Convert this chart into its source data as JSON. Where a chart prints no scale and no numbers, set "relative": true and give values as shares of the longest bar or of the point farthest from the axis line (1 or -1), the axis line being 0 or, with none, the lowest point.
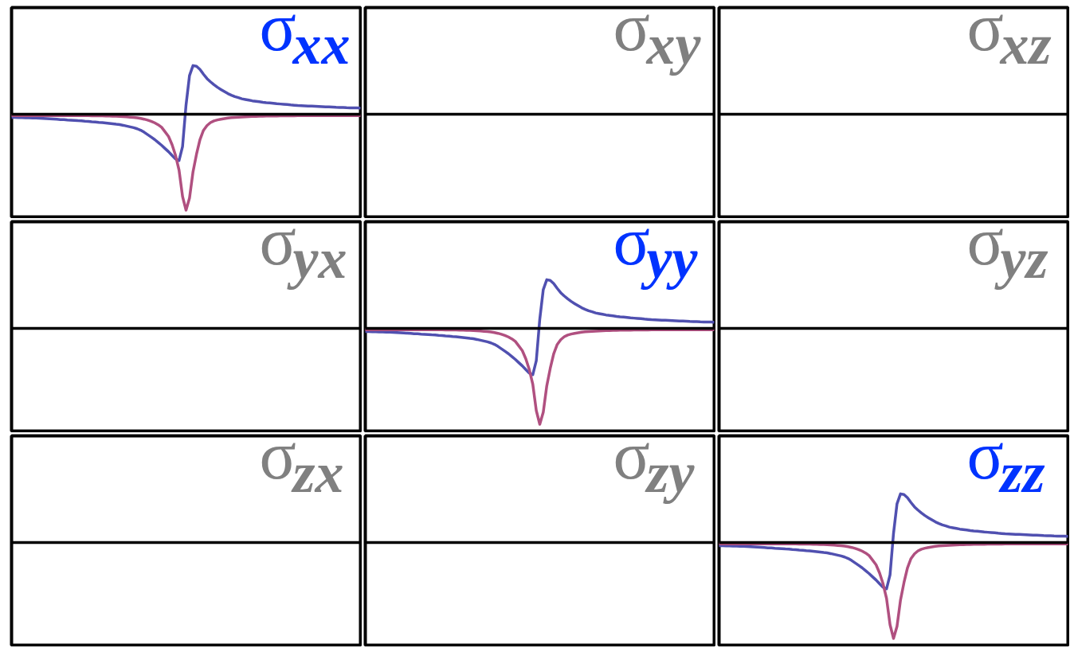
{
  "chart_data": [
    {
      "type": "line",
      "relative": true,
      "title": "σ$_{xx}$",
      "categories": [
        null,
        null,
        null,
        null,
        null,
        null,
        null,
        null,
        null,
        null,
        null,
        null,
        null,
        null,
        null,
        null,
        null,
        null,
        null,
        null,
        null,
        null,
        null,
        null,
        null,
        null,
        null,
        null,
        null,
        null,
        null,
        null,
        null,
        null,
        null,
        null,
        null,
        null,
        null,
        null,
        null,
        null,
        null,
        null,
        null,
        null,
        null,
        null,
        null,
        null,
        null,
        null,
        null,
        null,
        null,
        null,
        null,
        null,
        null,
        null,
        null,
        null,
        null,
        null,
        null,
        null,
        null,
        null,
        null,
        null,
        null,
        null,
        null,
        null,
        null,
        null,
        null,
        null,
        null,
        null,
        null,
        null,
        null,
        null,
        null,
        null,
        null,
        null,
        null,
        null,
        null,
        null,
        null,
        null,
        null,
        null,
        null,
        null,
        null,
        null,
        null
      ],
      "series": [
        {
          "color": "#5050b0",
          "values": [
            -0.033,
            -0.034,
            -0.035,
            -0.036,
            -0.038,
            -0.039,
            -0.04,
            -0.041,
            -0.043,
            -0.045,
            -0.047,
            -0.049,
            -0.051,
            -0.053,
            -0.056,
            -0.057,
            -0.06,
            -0.062,
            -0.065,
            -0.068,
            -0.07,
            -0.073,
            -0.075,
            -0.079,
            -0.081,
            -0.085,
            -0.088,
            -0.092,
            -0.096,
            -0.1,
            -0.105,
            -0.109,
            -0.116,
            -0.124,
            -0.132,
            -0.141,
            -0.152,
            -0.167,
            -0.188,
            -0.213,
            -0.238,
            -0.264,
            -0.294,
            -0.324,
            -0.358,
            -0.391,
            -0.43,
            -0.467,
            -0.483,
            -0.338,
            0.095,
            0.403,
            0.506,
            0.499,
            0.466,
            0.416,
            0.371,
            0.337,
            0.307,
            0.28,
            0.257,
            0.235,
            0.214,
            0.198,
            0.183,
            0.172,
            0.16,
            0.153,
            0.146,
            0.139,
            0.134,
            0.129,
            0.124,
            0.12,
            0.117,
            0.113,
            0.109,
            0.106,
            0.103,
            0.1,
            0.096,
            0.093,
            0.09,
            0.089,
            0.087,
            0.085,
            0.084,
            0.082,
            0.08,
            0.078,
            0.076,
            0.075,
            0.073,
            0.071,
            0.07,
            0.069,
            0.067,
            0.066,
            0.066,
            0.065,
            0.064
          ]
        },
        {
          "color": "#b05080",
          "values": [
            -0.015,
            -0.015,
            -0.015,
            -0.015,
            -0.015,
            -0.015,
            -0.015,
            -0.015,
            -0.015,
            -0.015,
            -0.015,
            -0.015,
            -0.015,
            -0.015,
            -0.015,
            -0.015,
            -0.015,
            -0.015,
            -0.015,
            -0.015,
            -0.015,
            -0.016,
            -0.016,
            -0.017,
            -0.017,
            -0.018,
            -0.018,
            -0.019,
            -0.02,
            -0.021,
            -0.022,
            -0.024,
            -0.026,
            -0.028,
            -0.031,
            -0.034,
            -0.038,
            -0.044,
            -0.052,
            -0.062,
            -0.074,
            -0.09,
            -0.11,
            -0.137,
            -0.184,
            -0.233,
            -0.318,
            -0.43,
            -0.583,
            -0.857,
            -1,
            -0.873,
            -0.6,
            -0.417,
            -0.264,
            -0.168,
            -0.119,
            -0.088,
            -0.07,
            -0.06,
            -0.052,
            -0.046,
            -0.04,
            -0.036,
            -0.033,
            -0.031,
            -0.029,
            -0.027,
            -0.025,
            -0.024,
            -0.023,
            -0.022,
            -0.021,
            -0.02,
            -0.02,
            -0.019,
            -0.019,
            -0.018,
            -0.018,
            -0.017,
            -0.017,
            -0.017,
            -0.016,
            -0.016,
            -0.016,
            -0.016,
            -0.016,
            -0.015,
            -0.015,
            -0.015,
            -0.015,
            -0.015,
            -0.015,
            -0.015,
            -0.015,
            -0.015,
            -0.015,
            -0.015,
            -0.015,
            -0.015,
            -0.015
          ]
        }
      ]
    },
    {
      "type": "other",
      "title": "σ$_{xy}$"
    },
    {
      "type": "other",
      "title": "σ$_{xz}$"
    },
    {
      "type": "other",
      "title": "σ$_{yx}$"
    },
    {
      "type": "line",
      "relative": true,
      "title": "σ$_{yy}$",
      "categories": [
        null,
        null,
        null,
        null,
        null,
        null,
        null,
        null,
        null,
        null,
        null,
        null,
        null,
        null,
        null,
        null,
        null,
        null,
        null,
        null,
        null,
        null,
        null,
        null,
        null,
        null,
        null,
        null,
        null,
        null,
        null,
        null,
        null,
        null,
        null,
        null,
        null,
        null,
        null,
        null,
        null,
        null,
        null,
        null,
        null,
        null,
        null,
        null,
        null,
        null,
        null,
        null,
        null,
        null,
        null,
        null,
        null,
        null,
        null,
        null,
        null,
        null,
        null,
        null,
        null,
        null,
        null,
        null,
        null,
        null,
        null,
        null,
        null,
        null,
        null,
        null,
        null,
        null,
        null,
        null,
        null,
        null,
        null,
        null,
        null,
        null,
        null,
        null,
        null,
        null,
        null,
        null,
        null,
        null,
        null,
        null,
        null,
        null,
        null,
        null,
        null
      ],
      "series": [
        {
          "color": "#5050b0",
          "values": [
            -0.033,
            -0.034,
            -0.035,
            -0.036,
            -0.038,
            -0.039,
            -0.04,
            -0.041,
            -0.043,
            -0.045,
            -0.047,
            -0.049,
            -0.051,
            -0.053,
            -0.056,
            -0.057,
            -0.06,
            -0.062,
            -0.065,
            -0.068,
            -0.07,
            -0.073,
            -0.075,
            -0.079,
            -0.081,
            -0.085,
            -0.088,
            -0.092,
            -0.096,
            -0.1,
            -0.105,
            -0.109,
            -0.116,
            -0.124,
            -0.132,
            -0.141,
            -0.152,
            -0.167,
            -0.188,
            -0.213,
            -0.238,
            -0.264,
            -0.294,
            -0.324,
            -0.358,
            -0.391,
            -0.43,
            -0.467,
            -0.483,
            -0.338,
            0.095,
            0.403,
            0.506,
            0.499,
            0.466,
            0.416,
            0.371,
            0.337,
            0.307,
            0.28,
            0.257,
            0.235,
            0.214,
            0.198,
            0.183,
            0.172,
            0.16,
            0.153,
            0.146,
            0.139,
            0.134,
            0.129,
            0.124,
            0.12,
            0.117,
            0.113,
            0.109,
            0.106,
            0.103,
            0.1,
            0.096,
            0.093,
            0.09,
            0.089,
            0.087,
            0.085,
            0.084,
            0.082,
            0.08,
            0.078,
            0.076,
            0.075,
            0.073,
            0.071,
            0.07,
            0.069,
            0.067,
            0.066,
            0.066,
            0.065,
            0.064
          ]
        },
        {
          "color": "#b05080",
          "values": [
            -0.015,
            -0.015,
            -0.015,
            -0.015,
            -0.015,
            -0.015,
            -0.015,
            -0.015,
            -0.015,
            -0.015,
            -0.015,
            -0.015,
            -0.015,
            -0.015,
            -0.015,
            -0.015,
            -0.015,
            -0.015,
            -0.015,
            -0.015,
            -0.015,
            -0.016,
            -0.016,
            -0.017,
            -0.017,
            -0.018,
            -0.018,
            -0.019,
            -0.02,
            -0.021,
            -0.022,
            -0.024,
            -0.026,
            -0.028,
            -0.031,
            -0.034,
            -0.038,
            -0.044,
            -0.052,
            -0.062,
            -0.074,
            -0.09,
            -0.11,
            -0.137,
            -0.184,
            -0.233,
            -0.318,
            -0.43,
            -0.583,
            -0.857,
            -1,
            -0.873,
            -0.6,
            -0.417,
            -0.264,
            -0.168,
            -0.119,
            -0.088,
            -0.07,
            -0.06,
            -0.052,
            -0.046,
            -0.04,
            -0.036,
            -0.033,
            -0.031,
            -0.029,
            -0.027,
            -0.025,
            -0.024,
            -0.023,
            -0.022,
            -0.021,
            -0.02,
            -0.02,
            -0.019,
            -0.019,
            -0.018,
            -0.018,
            -0.017,
            -0.017,
            -0.017,
            -0.016,
            -0.016,
            -0.016,
            -0.016,
            -0.016,
            -0.015,
            -0.015,
            -0.015,
            -0.015,
            -0.015,
            -0.015,
            -0.015,
            -0.015,
            -0.015,
            -0.015,
            -0.015,
            -0.015,
            -0.015,
            -0.015
          ]
        }
      ]
    },
    {
      "type": "other",
      "title": "σ$_{yz}$"
    },
    {
      "type": "other",
      "title": "σ$_{zx}$"
    },
    {
      "type": "other",
      "title": "σ$_{zy}$"
    },
    {
      "type": "line",
      "relative": true,
      "title": "σ$_{zz}$",
      "categories": [
        null,
        null,
        null,
        null,
        null,
        null,
        null,
        null,
        null,
        null,
        null,
        null,
        null,
        null,
        null,
        null,
        null,
        null,
        null,
        null,
        null,
        null,
        null,
        null,
        null,
        null,
        null,
        null,
        null,
        null,
        null,
        null,
        null,
        null,
        null,
        null,
        null,
        null,
        null,
        null,
        null,
        null,
        null,
        null,
        null,
        null,
        null,
        null,
        null,
        null,
        null,
        null,
        null,
        null,
        null,
        null,
        null,
        null,
        null,
        null,
        null,
        null,
        null,
        null,
        null,
        null,
        null,
        null,
        null,
        null,
        null,
        null,
        null,
        null,
        null,
        null,
        null,
        null,
        null,
        null,
        null,
        null,
        null,
        null,
        null,
        null,
        null,
        null,
        null,
        null,
        null,
        null,
        null,
        null,
        null,
        null,
        null,
        null,
        null,
        null,
        null
      ],
      "series": [
        {
          "color": "#5050b0",
          "values": [
            -0.033,
            -0.034,
            -0.035,
            -0.036,
            -0.038,
            -0.039,
            -0.04,
            -0.041,
            -0.043,
            -0.045,
            -0.047,
            -0.049,
            -0.051,
            -0.053,
            -0.056,
            -0.057,
            -0.06,
            -0.062,
            -0.065,
            -0.068,
            -0.07,
            -0.073,
            -0.075,
            -0.079,
            -0.081,
            -0.085,
            -0.088,
            -0.092,
            -0.096,
            -0.1,
            -0.105,
            -0.109,
            -0.116,
            -0.124,
            -0.132,
            -0.141,
            -0.152,
            -0.167,
            -0.188,
            -0.213,
            -0.238,
            -0.264,
            -0.294,
            -0.324,
            -0.358,
            -0.391,
            -0.43,
            -0.467,
            -0.483,
            -0.338,
            0.095,
            0.403,
            0.506,
            0.499,
            0.466,
            0.416,
            0.371,
            0.337,
            0.307,
            0.28,
            0.257,
            0.235,
            0.214,
            0.198,
            0.183,
            0.172,
            0.16,
            0.153,
            0.146,
            0.139,
            0.134,
            0.129,
            0.124,
            0.12,
            0.117,
            0.113,
            0.109,
            0.106,
            0.103,
            0.1,
            0.096,
            0.093,
            0.09,
            0.089,
            0.087,
            0.085,
            0.084,
            0.082,
            0.08,
            0.078,
            0.076,
            0.075,
            0.073,
            0.071,
            0.07,
            0.069,
            0.067,
            0.066,
            0.066,
            0.065,
            0.064
          ]
        },
        {
          "color": "#b05080",
          "values": [
            -0.015,
            -0.015,
            -0.015,
            -0.015,
            -0.015,
            -0.015,
            -0.015,
            -0.015,
            -0.015,
            -0.015,
            -0.015,
            -0.015,
            -0.015,
            -0.015,
            -0.015,
            -0.015,
            -0.015,
            -0.015,
            -0.015,
            -0.015,
            -0.015,
            -0.016,
            -0.016,
            -0.017,
            -0.017,
            -0.018,
            -0.018,
            -0.019,
            -0.02,
            -0.021,
            -0.022,
            -0.024,
            -0.026,
            -0.028,
            -0.031,
            -0.034,
            -0.038,
            -0.044,
            -0.052,
            -0.062,
            -0.074,
            -0.09,
            -0.11,
            -0.137,
            -0.184,
            -0.233,
            -0.318,
            -0.43,
            -0.583,
            -0.857,
            -1,
            -0.873,
            -0.6,
            -0.417,
            -0.264,
            -0.168,
            -0.119,
            -0.088,
            -0.07,
            -0.06,
            -0.052,
            -0.046,
            -0.04,
            -0.036,
            -0.033,
            -0.031,
            -0.029,
            -0.027,
            -0.025,
            -0.024,
            -0.023,
            -0.022,
            -0.021,
            -0.02,
            -0.02,
            -0.019,
            -0.019,
            -0.018,
            -0.018,
            -0.017,
            -0.017,
            -0.017,
            -0.016,
            -0.016,
            -0.016,
            -0.016,
            -0.016,
            -0.015,
            -0.015,
            -0.015,
            -0.015,
            -0.015,
            -0.015,
            -0.015,
            -0.015,
            -0.015,
            -0.015,
            -0.015,
            -0.015,
            -0.015,
            -0.015
          ]
        }
      ]
    }
  ]
}
